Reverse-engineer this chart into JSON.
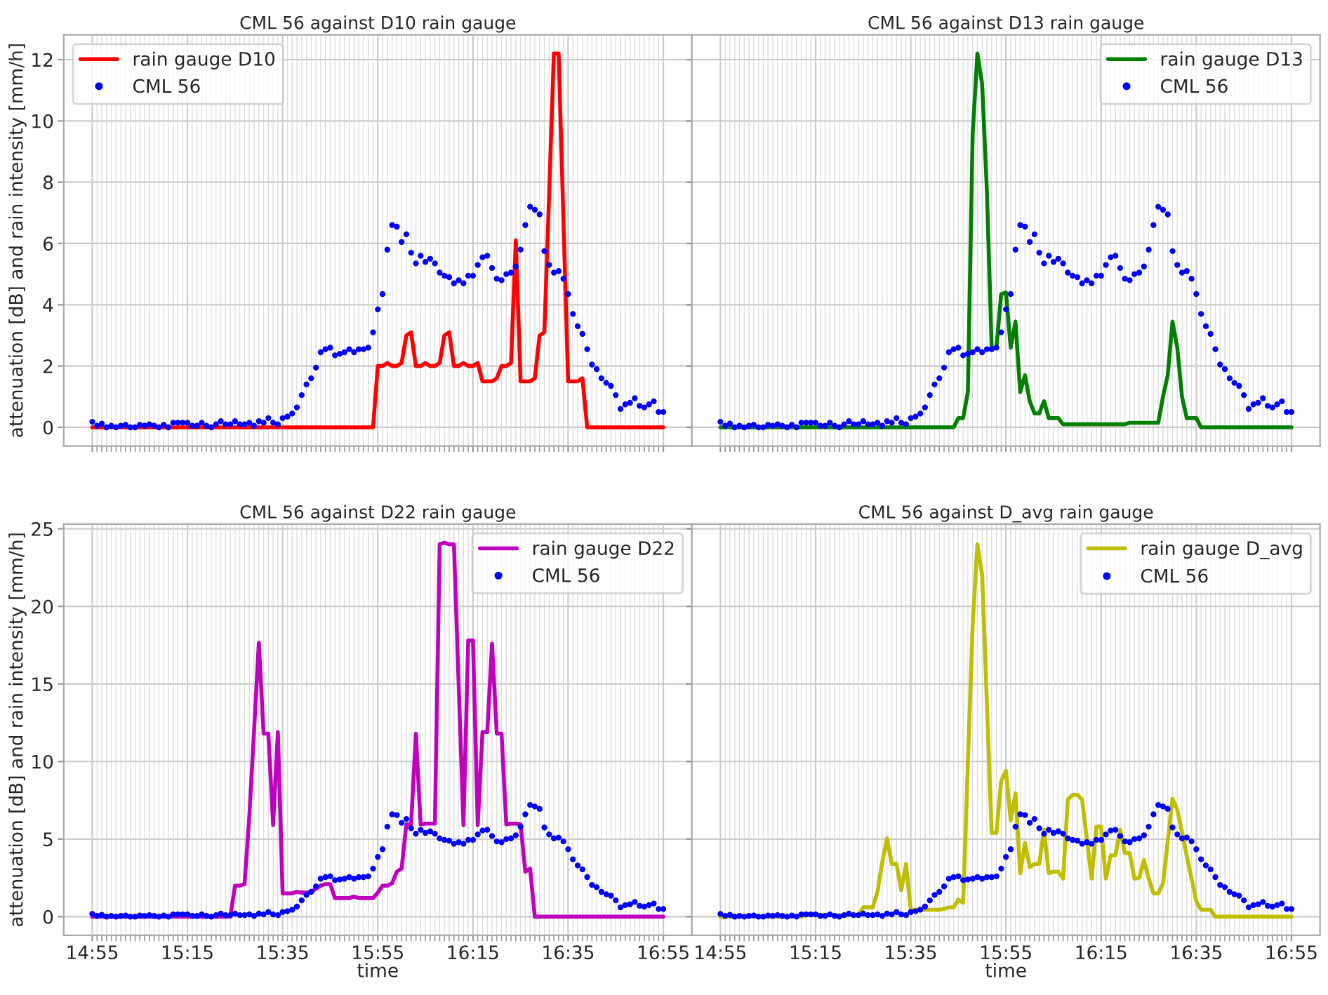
{
  "chart_data": [
    {
      "type": "line",
      "title": "CML 56 against D10 rain gauge",
      "ylabel": "attenuation [dB] and rain intensity [mm/h]",
      "legend": "top left",
      "grid": true,
      "tick_labels": "y",
      "x": [
        14.9167,
        14.9333,
        14.95,
        14.9667,
        14.9833,
        15,
        15.0167,
        15.0333,
        15.05,
        15.0667,
        15.0833,
        15.1,
        15.1167,
        15.1333,
        15.15,
        15.1667,
        15.1833,
        15.2,
        15.2167,
        15.2333,
        15.25,
        15.2667,
        15.2833,
        15.3,
        15.3167,
        15.3333,
        15.35,
        15.3667,
        15.3833,
        15.4,
        15.4167,
        15.4333,
        15.45,
        15.4667,
        15.4833,
        15.5,
        15.5167,
        15.5333,
        15.55,
        15.5667,
        15.5833,
        15.6,
        15.6167,
        15.6333,
        15.65,
        15.6667,
        15.6833,
        15.7,
        15.7167,
        15.7333,
        15.75,
        15.7667,
        15.7833,
        15.8,
        15.8167,
        15.8333,
        15.85,
        15.8667,
        15.8833,
        15.9,
        15.9167,
        15.9333,
        15.95,
        15.9667,
        15.9833,
        16,
        16.0167,
        16.0333,
        16.05,
        16.0667,
        16.0833,
        16.1,
        16.1167,
        16.1333,
        16.15,
        16.1667,
        16.1833,
        16.2,
        16.2167,
        16.2333,
        16.25,
        16.2667,
        16.2833,
        16.3,
        16.3167,
        16.3333,
        16.35,
        16.3667,
        16.3833,
        16.4,
        16.4167,
        16.4333,
        16.45,
        16.4667,
        16.4833,
        16.5,
        16.5167,
        16.5333,
        16.55,
        16.5667,
        16.5833,
        16.6,
        16.6167,
        16.6333,
        16.65,
        16.6667,
        16.6833,
        16.7,
        16.7167,
        16.7333,
        16.75,
        16.7667,
        16.7833,
        16.8,
        16.8167,
        16.8333,
        16.85,
        16.8667,
        16.8833,
        16.9,
        16.9167
      ],
      "xlim": [
        14.8167,
        17.0167
      ],
      "xticks": [
        {
          "value": 14.9167,
          "label": null
        },
        {
          "value": 15.25,
          "label": null
        },
        {
          "value": 15.5833,
          "label": null
        },
        {
          "value": 15.9167,
          "label": null
        },
        {
          "value": 16.25,
          "label": null
        },
        {
          "value": 16.5833,
          "label": null
        },
        {
          "value": 16.9167,
          "label": null
        }
      ],
      "ylim": [
        -0.61,
        12.81
      ],
      "yticks": [
        0,
        2,
        4,
        6,
        8,
        10,
        12
      ],
      "series": [
        {
          "name": "rain gauge D10",
          "type": "line",
          "color": "#ff0000",
          "values": [
            0,
            0,
            0,
            0,
            0,
            0,
            0,
            0,
            0,
            0,
            0,
            0,
            0,
            0,
            0,
            0,
            0,
            0,
            0,
            0,
            0,
            0,
            0,
            0,
            0,
            0,
            0,
            0,
            0,
            0,
            0,
            0,
            0,
            0,
            0,
            0,
            0,
            0,
            0,
            0,
            0,
            0,
            0,
            0,
            0,
            0,
            0,
            0,
            0,
            0,
            0,
            0,
            0,
            0,
            0,
            0,
            0,
            0,
            0,
            0,
            2.0,
            2.0,
            2.1,
            2.0,
            2.0,
            2.1,
            3.0,
            3.1,
            2.0,
            2.0,
            2.1,
            2.0,
            2.0,
            2.1,
            3.0,
            3.1,
            2.0,
            2.0,
            2.1,
            2.0,
            2.0,
            2.1,
            1.5,
            1.5,
            1.5,
            1.6,
            2.0,
            2.0,
            2.1,
            6.1,
            1.5,
            1.5,
            1.5,
            1.6,
            3.0,
            3.1,
            7.6,
            12.2,
            12.2,
            6.8,
            1.5,
            1.5,
            1.5,
            1.6,
            0,
            0,
            0,
            0,
            0,
            0,
            0,
            0,
            0,
            0,
            0,
            0,
            0,
            0,
            0,
            0,
            0
          ]
        },
        {
          "name": "CML 56",
          "type": "scatter",
          "marker": "circle",
          "color": "#0000ff",
          "values": [
            0.18,
            0.05,
            0.12,
            0,
            0.05,
            0,
            0.05,
            0.08,
            0,
            0,
            0.08,
            0.05,
            0.1,
            0.05,
            0,
            0.08,
            0,
            0.15,
            0.15,
            0.15,
            0.15,
            0.05,
            0.05,
            0.15,
            0.05,
            0,
            0.1,
            0.2,
            0.1,
            0.1,
            0.2,
            0.1,
            0.1,
            0.15,
            0.05,
            0.2,
            0.15,
            0.3,
            0.15,
            0.1,
            0.3,
            0.35,
            0.45,
            0.65,
            1.05,
            1.4,
            1.6,
            1.95,
            2.45,
            2.55,
            2.6,
            2.35,
            2.4,
            2.45,
            2.55,
            2.45,
            2.55,
            2.55,
            2.6,
            3.1,
            3.85,
            4.35,
            5.8,
            6.6,
            6.55,
            6.05,
            6.3,
            5.7,
            5.35,
            5.6,
            5.4,
            5.5,
            5.35,
            5.05,
            4.95,
            4.9,
            4.7,
            4.8,
            4.7,
            4.95,
            4.95,
            5.3,
            5.55,
            5.6,
            5.2,
            4.85,
            4.8,
            5.0,
            5.05,
            5.25,
            5.8,
            6.6,
            7.2,
            7.1,
            6.95,
            5.75,
            5.3,
            5.05,
            5.1,
            4.85,
            4.35,
            3.7,
            3.3,
            3.05,
            2.55,
            2.05,
            1.9,
            1.6,
            1.45,
            1.35,
            1.05,
            0.6,
            0.75,
            0.8,
            0.95,
            0.7,
            0.65,
            0.75,
            0.85,
            0.5,
            0.5
          ]
        }
      ]
    },
    {
      "type": "line",
      "title": "CML 56 against D13 rain gauge",
      "legend": "top right",
      "grid": true,
      "tick_labels": false,
      "x": [
        14.9167,
        14.9333,
        14.95,
        14.9667,
        14.9833,
        15,
        15.0167,
        15.0333,
        15.05,
        15.0667,
        15.0833,
        15.1,
        15.1167,
        15.1333,
        15.15,
        15.1667,
        15.1833,
        15.2,
        15.2167,
        15.2333,
        15.25,
        15.2667,
        15.2833,
        15.3,
        15.3167,
        15.3333,
        15.35,
        15.3667,
        15.3833,
        15.4,
        15.4167,
        15.4333,
        15.45,
        15.4667,
        15.4833,
        15.5,
        15.5167,
        15.5333,
        15.55,
        15.5667,
        15.5833,
        15.6,
        15.6167,
        15.6333,
        15.65,
        15.6667,
        15.6833,
        15.7,
        15.7167,
        15.7333,
        15.75,
        15.7667,
        15.7833,
        15.8,
        15.8167,
        15.8333,
        15.85,
        15.8667,
        15.8833,
        15.9,
        15.9167,
        15.9333,
        15.95,
        15.9667,
        15.9833,
        16,
        16.0167,
        16.0333,
        16.05,
        16.0667,
        16.0833,
        16.1,
        16.1167,
        16.1333,
        16.15,
        16.1667,
        16.1833,
        16.2,
        16.2167,
        16.2333,
        16.25,
        16.2667,
        16.2833,
        16.3,
        16.3167,
        16.3333,
        16.35,
        16.3667,
        16.3833,
        16.4,
        16.4167,
        16.4333,
        16.45,
        16.4667,
        16.4833,
        16.5,
        16.5167,
        16.5333,
        16.55,
        16.5667,
        16.5833,
        16.6,
        16.6167,
        16.6333,
        16.65,
        16.6667,
        16.6833,
        16.7,
        16.7167,
        16.7333,
        16.75,
        16.7667,
        16.7833,
        16.8,
        16.8167,
        16.8333,
        16.85,
        16.8667,
        16.8833,
        16.9,
        16.9167
      ],
      "xlim": [
        14.8167,
        17.0167
      ],
      "xticks": [
        {
          "value": 14.9167,
          "label": null
        },
        {
          "value": 15.25,
          "label": null
        },
        {
          "value": 15.5833,
          "label": null
        },
        {
          "value": 15.9167,
          "label": null
        },
        {
          "value": 16.25,
          "label": null
        },
        {
          "value": 16.5833,
          "label": null
        },
        {
          "value": 16.9167,
          "label": null
        }
      ],
      "ylim": [
        -0.61,
        12.81
      ],
      "yticks": [
        0,
        2,
        4,
        6,
        8,
        10,
        12
      ],
      "series": [
        {
          "name": "rain gauge D13",
          "type": "line",
          "color": "#008000",
          "values": [
            0,
            0,
            0,
            0,
            0,
            0,
            0,
            0,
            0,
            0,
            0,
            0,
            0,
            0,
            0,
            0,
            0,
            0,
            0,
            0,
            0,
            0,
            0,
            0,
            0,
            0,
            0,
            0,
            0,
            0,
            0,
            0,
            0,
            0,
            0,
            0,
            0,
            0,
            0,
            0,
            0,
            0,
            0,
            0,
            0,
            0,
            0,
            0,
            0,
            0,
            0.3,
            0.3,
            1.15,
            9.55,
            12.2,
            11.2,
            7.7,
            2.6,
            2.6,
            4.35,
            4.4,
            2.6,
            3.45,
            1.15,
            1.7,
            0.85,
            0.45,
            0.45,
            0.85,
            0.3,
            0.3,
            0.3,
            0.1,
            0.1,
            0.1,
            0.1,
            0.1,
            0.1,
            0.1,
            0.1,
            0.1,
            0.1,
            0.1,
            0.1,
            0.1,
            0.1,
            0.15,
            0.15,
            0.15,
            0.15,
            0.15,
            0.15,
            0.15,
            1.0,
            1.7,
            3.45,
            2.6,
            1.0,
            0.3,
            0.3,
            0.3,
            0,
            0,
            0,
            0,
            0,
            0,
            0,
            0,
            0,
            0,
            0,
            0,
            0,
            0,
            0,
            0,
            0,
            0,
            0,
            0
          ]
        },
        {
          "name": "CML 56",
          "type": "scatter",
          "marker": "circle",
          "color": "#0000ff",
          "values": [
            0.18,
            0.05,
            0.12,
            0,
            0.05,
            0,
            0.05,
            0.08,
            0,
            0,
            0.08,
            0.05,
            0.1,
            0.05,
            0,
            0.08,
            0,
            0.15,
            0.15,
            0.15,
            0.15,
            0.05,
            0.05,
            0.15,
            0.05,
            0,
            0.1,
            0.2,
            0.1,
            0.1,
            0.2,
            0.1,
            0.1,
            0.15,
            0.05,
            0.2,
            0.15,
            0.3,
            0.15,
            0.1,
            0.3,
            0.35,
            0.45,
            0.65,
            1.05,
            1.4,
            1.6,
            1.95,
            2.45,
            2.55,
            2.6,
            2.35,
            2.4,
            2.45,
            2.55,
            2.45,
            2.55,
            2.55,
            2.6,
            3.1,
            3.85,
            4.35,
            5.8,
            6.6,
            6.55,
            6.05,
            6.3,
            5.7,
            5.35,
            5.6,
            5.4,
            5.5,
            5.35,
            5.05,
            4.95,
            4.9,
            4.7,
            4.8,
            4.7,
            4.95,
            4.95,
            5.3,
            5.55,
            5.6,
            5.2,
            4.85,
            4.8,
            5.0,
            5.05,
            5.25,
            5.8,
            6.6,
            7.2,
            7.1,
            6.95,
            5.75,
            5.3,
            5.05,
            5.1,
            4.85,
            4.35,
            3.7,
            3.3,
            3.05,
            2.55,
            2.05,
            1.9,
            1.6,
            1.45,
            1.35,
            1.05,
            0.6,
            0.75,
            0.8,
            0.95,
            0.7,
            0.65,
            0.75,
            0.85,
            0.5,
            0.5
          ]
        }
      ]
    },
    {
      "type": "line",
      "title": "CML 56 against D22 rain gauge",
      "xlabel": "time",
      "ylabel": "attenuation [dB] and rain intensity [mm/h]",
      "legend": "top right",
      "grid": true,
      "x": [
        14.9167,
        14.9333,
        14.95,
        14.9667,
        14.9833,
        15,
        15.0167,
        15.0333,
        15.05,
        15.0667,
        15.0833,
        15.1,
        15.1167,
        15.1333,
        15.15,
        15.1667,
        15.1833,
        15.2,
        15.2167,
        15.2333,
        15.25,
        15.2667,
        15.2833,
        15.3,
        15.3167,
        15.3333,
        15.35,
        15.3667,
        15.3833,
        15.4,
        15.4167,
        15.4333,
        15.45,
        15.4667,
        15.4833,
        15.5,
        15.5167,
        15.5333,
        15.55,
        15.5667,
        15.5833,
        15.6,
        15.6167,
        15.6333,
        15.65,
        15.6667,
        15.6833,
        15.7,
        15.7167,
        15.7333,
        15.75,
        15.7667,
        15.7833,
        15.8,
        15.8167,
        15.8333,
        15.85,
        15.8667,
        15.8833,
        15.9,
        15.9167,
        15.9333,
        15.95,
        15.9667,
        15.9833,
        16,
        16.0167,
        16.0333,
        16.05,
        16.0667,
        16.0833,
        16.1,
        16.1167,
        16.1333,
        16.15,
        16.1667,
        16.1833,
        16.2,
        16.2167,
        16.2333,
        16.25,
        16.2667,
        16.2833,
        16.3,
        16.3167,
        16.3333,
        16.35,
        16.3667,
        16.3833,
        16.4,
        16.4167,
        16.4333,
        16.45,
        16.4667,
        16.4833,
        16.5,
        16.5167,
        16.5333,
        16.55,
        16.5667,
        16.5833,
        16.6,
        16.6167,
        16.6333,
        16.65,
        16.6667,
        16.6833,
        16.7,
        16.7167,
        16.7333,
        16.75,
        16.7667,
        16.7833,
        16.8,
        16.8167,
        16.8333,
        16.85,
        16.8667,
        16.8833,
        16.9,
        16.9167
      ],
      "xlim": [
        14.8167,
        17.0167
      ],
      "xticks": [
        {
          "value": 14.9167,
          "label": "14:55"
        },
        {
          "value": 15.25,
          "label": "15:15"
        },
        {
          "value": 15.5833,
          "label": "15:35"
        },
        {
          "value": 15.9167,
          "label": "15:55"
        },
        {
          "value": 16.25,
          "label": "16:15"
        },
        {
          "value": 16.5833,
          "label": "16:35"
        },
        {
          "value": 16.9167,
          "label": "16:55"
        }
      ],
      "ylim": [
        -1.2,
        25.3
      ],
      "yticks": [
        0,
        5,
        10,
        15,
        20,
        25
      ],
      "series": [
        {
          "name": "rain gauge D22",
          "type": "line",
          "color": "#bf00bf",
          "values": [
            0,
            0,
            0,
            0,
            0,
            0,
            0,
            0,
            0,
            0,
            0,
            0,
            0,
            0,
            0,
            0,
            0,
            0,
            0,
            0,
            0,
            0,
            0,
            0,
            0,
            0,
            0,
            0,
            0,
            0,
            2.0,
            2.0,
            2.1,
            6.5,
            12.0,
            17.65,
            11.8,
            11.8,
            5.9,
            11.9,
            1.5,
            1.5,
            1.5,
            1.6,
            1.55,
            1.55,
            1.6,
            1.8,
            2.0,
            2.1,
            2.1,
            1.2,
            1.2,
            1.2,
            1.2,
            1.3,
            1.2,
            1.2,
            1.2,
            1.2,
            1.55,
            2.0,
            2.0,
            2.15,
            2.9,
            3.1,
            5.95,
            5.95,
            11.8,
            5.95,
            6.0,
            6.0,
            6.0,
            24.0,
            24.1,
            24.0,
            24.0,
            14.9,
            5.9,
            17.8,
            17.8,
            5.9,
            11.9,
            11.9,
            17.6,
            11.8,
            11.8,
            5.95,
            6.0,
            6.0,
            5.95,
            2.9,
            3.1,
            0,
            0,
            0,
            0,
            0,
            0,
            0,
            0,
            0,
            0,
            0,
            0,
            0,
            0,
            0,
            0,
            0,
            0,
            0,
            0,
            0,
            0,
            0,
            0,
            0,
            0,
            0,
            0
          ]
        },
        {
          "name": "CML 56",
          "type": "scatter",
          "marker": "circle",
          "color": "#0000ff",
          "values": [
            0.18,
            0.05,
            0.12,
            0,
            0.05,
            0,
            0.05,
            0.08,
            0,
            0,
            0.08,
            0.05,
            0.1,
            0.05,
            0,
            0.08,
            0,
            0.15,
            0.15,
            0.15,
            0.15,
            0.05,
            0.05,
            0.15,
            0.05,
            0,
            0.1,
            0.2,
            0.1,
            0.1,
            0.2,
            0.1,
            0.1,
            0.15,
            0.05,
            0.2,
            0.15,
            0.3,
            0.15,
            0.1,
            0.3,
            0.35,
            0.45,
            0.65,
            1.05,
            1.4,
            1.6,
            1.95,
            2.45,
            2.55,
            2.6,
            2.35,
            2.4,
            2.45,
            2.55,
            2.45,
            2.55,
            2.55,
            2.6,
            3.1,
            3.85,
            4.35,
            5.8,
            6.6,
            6.55,
            6.05,
            6.3,
            5.7,
            5.35,
            5.6,
            5.4,
            5.5,
            5.35,
            5.05,
            4.95,
            4.9,
            4.7,
            4.8,
            4.7,
            4.95,
            4.95,
            5.3,
            5.55,
            5.6,
            5.2,
            4.85,
            4.8,
            5.0,
            5.05,
            5.25,
            5.8,
            6.6,
            7.2,
            7.1,
            6.95,
            5.75,
            5.3,
            5.05,
            5.1,
            4.85,
            4.35,
            3.7,
            3.3,
            3.05,
            2.55,
            2.05,
            1.9,
            1.6,
            1.45,
            1.35,
            1.05,
            0.6,
            0.75,
            0.8,
            0.95,
            0.7,
            0.65,
            0.75,
            0.85,
            0.5,
            0.5
          ]
        }
      ]
    },
    {
      "type": "line",
      "title": "CML 56 against D_avg rain gauge",
      "xlabel": "time",
      "legend": "top right",
      "grid": true,
      "tick_labels": "x",
      "x": [
        14.9167,
        14.9333,
        14.95,
        14.9667,
        14.9833,
        15,
        15.0167,
        15.0333,
        15.05,
        15.0667,
        15.0833,
        15.1,
        15.1167,
        15.1333,
        15.15,
        15.1667,
        15.1833,
        15.2,
        15.2167,
        15.2333,
        15.25,
        15.2667,
        15.2833,
        15.3,
        15.3167,
        15.3333,
        15.35,
        15.3667,
        15.3833,
        15.4,
        15.4167,
        15.4333,
        15.45,
        15.4667,
        15.4833,
        15.5,
        15.5167,
        15.5333,
        15.55,
        15.5667,
        15.5833,
        15.6,
        15.6167,
        15.6333,
        15.65,
        15.6667,
        15.6833,
        15.7,
        15.7167,
        15.7333,
        15.75,
        15.7667,
        15.7833,
        15.8,
        15.8167,
        15.8333,
        15.85,
        15.8667,
        15.8833,
        15.9,
        15.9167,
        15.9333,
        15.95,
        15.9667,
        15.9833,
        16,
        16.0167,
        16.0333,
        16.05,
        16.0667,
        16.0833,
        16.1,
        16.1167,
        16.1333,
        16.15,
        16.1667,
        16.1833,
        16.2,
        16.2167,
        16.2333,
        16.25,
        16.2667,
        16.2833,
        16.3,
        16.3167,
        16.3333,
        16.35,
        16.3667,
        16.3833,
        16.4,
        16.4167,
        16.4333,
        16.45,
        16.4667,
        16.4833,
        16.5,
        16.5167,
        16.5333,
        16.55,
        16.5667,
        16.5833,
        16.6,
        16.6167,
        16.6333,
        16.65,
        16.6667,
        16.6833,
        16.7,
        16.7167,
        16.7333,
        16.75,
        16.7667,
        16.7833,
        16.8,
        16.8167,
        16.8333,
        16.85,
        16.8667,
        16.8833,
        16.9,
        16.9167
      ],
      "xlim": [
        14.8167,
        17.0167
      ],
      "xticks": [
        {
          "value": 14.9167,
          "label": "14:55"
        },
        {
          "value": 15.25,
          "label": "15:15"
        },
        {
          "value": 15.5833,
          "label": "15:35"
        },
        {
          "value": 15.9167,
          "label": "15:55"
        },
        {
          "value": 16.25,
          "label": "16:15"
        },
        {
          "value": 16.5833,
          "label": "16:35"
        },
        {
          "value": 16.9167,
          "label": "16:55"
        }
      ],
      "ylim": [
        -1.2,
        25.3
      ],
      "yticks": [
        0,
        5,
        10,
        15,
        20,
        25
      ],
      "series": [
        {
          "name": "rain gauge D_avg",
          "type": "line",
          "color": "#bfbf00",
          "values": [
            0,
            0,
            0,
            0,
            0,
            0,
            0,
            0,
            0,
            0,
            0,
            0,
            0,
            0,
            0,
            0,
            0,
            0,
            0.1,
            0.1,
            0.1,
            0.1,
            0.1,
            0.1,
            0.1,
            0.1,
            0.1,
            0.1,
            0.1,
            0.1,
            0.6,
            0.6,
            0.6,
            1.6,
            3.5,
            5.05,
            3.4,
            3.4,
            1.7,
            3.4,
            0.45,
            0.45,
            0.45,
            0.45,
            0.45,
            0.45,
            0.45,
            0.5,
            0.6,
            0.6,
            1.1,
            0.9,
            9.9,
            18.8,
            24.0,
            22.0,
            13.7,
            5.4,
            5.4,
            8.75,
            9.4,
            6.2,
            7.95,
            2.8,
            4.75,
            3.2,
            3.4,
            3.4,
            5.6,
            2.8,
            2.9,
            2.9,
            2.45,
            7.55,
            7.85,
            7.85,
            7.55,
            5.0,
            2.45,
            5.8,
            5.8,
            2.45,
            3.95,
            3.95,
            5.6,
            4.1,
            4.1,
            2.45,
            2.5,
            3.65,
            2.45,
            1.5,
            1.5,
            2.15,
            4.85,
            7.6,
            6.9,
            5.45,
            3.9,
            2.45,
            1.0,
            0.45,
            0.45,
            0.45,
            0,
            0,
            0,
            0,
            0,
            0,
            0,
            0,
            0,
            0,
            0,
            0,
            0,
            0,
            0,
            0,
            0
          ]
        },
        {
          "name": "CML 56",
          "type": "scatter",
          "marker": "circle",
          "color": "#0000ff",
          "values": [
            0.18,
            0.05,
            0.12,
            0,
            0.05,
            0,
            0.05,
            0.08,
            0,
            0,
            0.08,
            0.05,
            0.1,
            0.05,
            0,
            0.08,
            0,
            0.15,
            0.15,
            0.15,
            0.15,
            0.05,
            0.05,
            0.15,
            0.05,
            0,
            0.1,
            0.2,
            0.1,
            0.1,
            0.2,
            0.1,
            0.1,
            0.15,
            0.05,
            0.2,
            0.15,
            0.3,
            0.15,
            0.1,
            0.3,
            0.35,
            0.45,
            0.65,
            1.05,
            1.4,
            1.6,
            1.95,
            2.45,
            2.55,
            2.6,
            2.35,
            2.4,
            2.45,
            2.55,
            2.45,
            2.55,
            2.55,
            2.6,
            3.1,
            3.85,
            4.35,
            5.8,
            6.6,
            6.55,
            6.05,
            6.3,
            5.7,
            5.35,
            5.6,
            5.4,
            5.5,
            5.35,
            5.05,
            4.95,
            4.9,
            4.7,
            4.8,
            4.7,
            4.95,
            4.95,
            5.3,
            5.55,
            5.6,
            5.2,
            4.85,
            4.8,
            5.0,
            5.05,
            5.25,
            5.8,
            6.6,
            7.2,
            7.1,
            6.95,
            5.75,
            5.3,
            5.05,
            5.1,
            4.85,
            4.35,
            3.7,
            3.3,
            3.05,
            2.55,
            2.05,
            1.9,
            1.6,
            1.45,
            1.35,
            1.05,
            0.6,
            0.75,
            0.8,
            0.95,
            0.7,
            0.65,
            0.75,
            0.85,
            0.5,
            0.5
          ]
        }
      ]
    }
  ]
}
